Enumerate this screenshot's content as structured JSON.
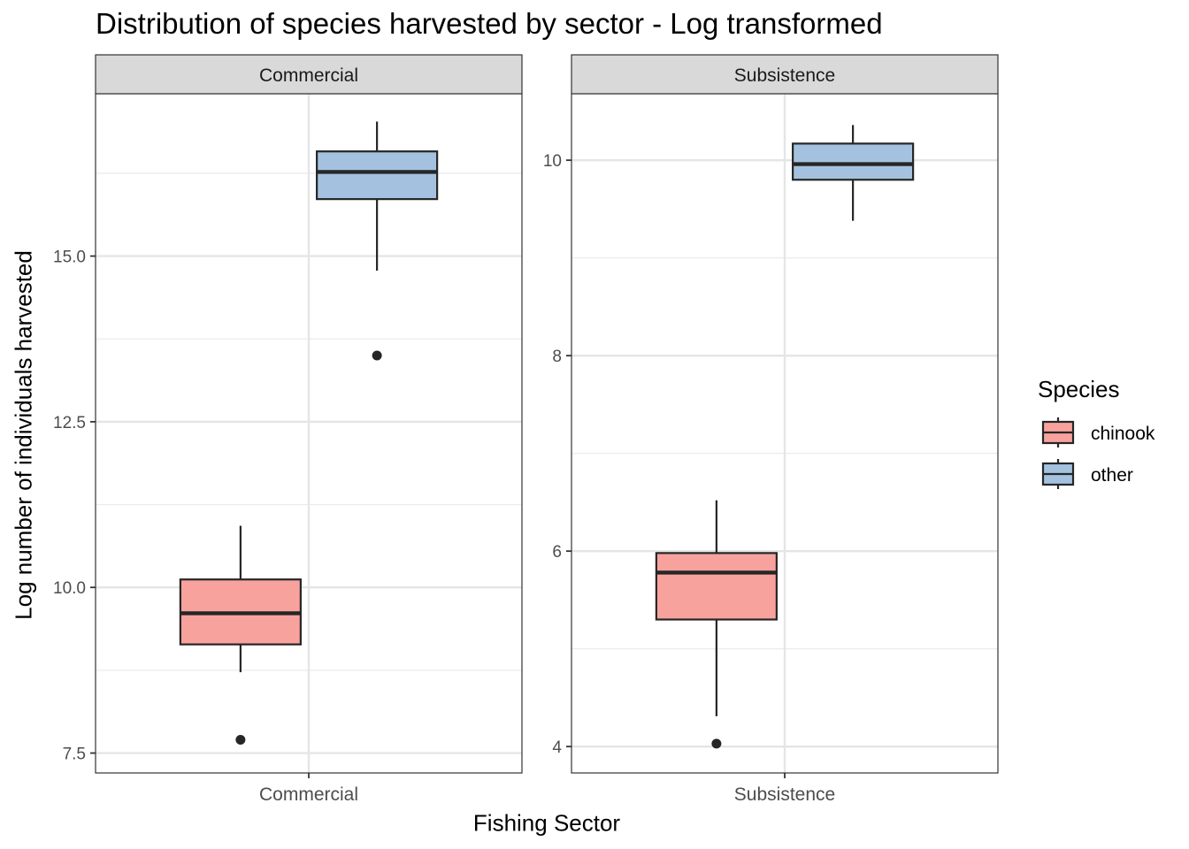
{
  "chart_data": {
    "type": "boxplot",
    "title": "Distribution of species harvested by sector - Log transformed",
    "xlabel": "Fishing Sector",
    "ylabel": "Log number of individuals harvested",
    "legend": {
      "title": "Species",
      "placement": "right",
      "entries": [
        {
          "name": "chinook",
          "color": "#F8A29E"
        },
        {
          "name": "other",
          "color": "#A4C2DF"
        }
      ]
    },
    "grid": true,
    "facets": [
      {
        "strip_label": "Commercial",
        "x_tick": "Commercial",
        "ylim": [
          7.2,
          17.45
        ],
        "y_ticks": [
          7.5,
          10.0,
          12.5,
          15.0
        ],
        "y_tick_labels": [
          "7.5",
          "10.0",
          "12.5",
          "15.0"
        ],
        "boxes": [
          {
            "species": "chinook",
            "whisker_low": 8.72,
            "q1": 9.14,
            "median": 9.61,
            "q3": 10.12,
            "whisker_high": 10.93,
            "outliers": [
              7.7
            ]
          },
          {
            "species": "other",
            "whisker_low": 14.78,
            "q1": 15.86,
            "median": 16.27,
            "q3": 16.58,
            "whisker_high": 17.03,
            "outliers": [
              13.5
            ]
          }
        ]
      },
      {
        "strip_label": "Subsistence",
        "x_tick": "Subsistence",
        "ylim": [
          3.73,
          10.68
        ],
        "y_ticks": [
          4,
          6,
          8,
          10
        ],
        "y_tick_labels": [
          "4",
          "6",
          "8",
          "10"
        ],
        "boxes": [
          {
            "species": "chinook",
            "whisker_low": 4.31,
            "q1": 5.3,
            "median": 5.78,
            "q3": 5.98,
            "whisker_high": 6.52,
            "outliers": [
              4.03
            ]
          },
          {
            "species": "other",
            "whisker_low": 9.38,
            "q1": 9.8,
            "median": 9.96,
            "q3": 10.17,
            "whisker_high": 10.36,
            "outliers": []
          }
        ]
      }
    ]
  }
}
